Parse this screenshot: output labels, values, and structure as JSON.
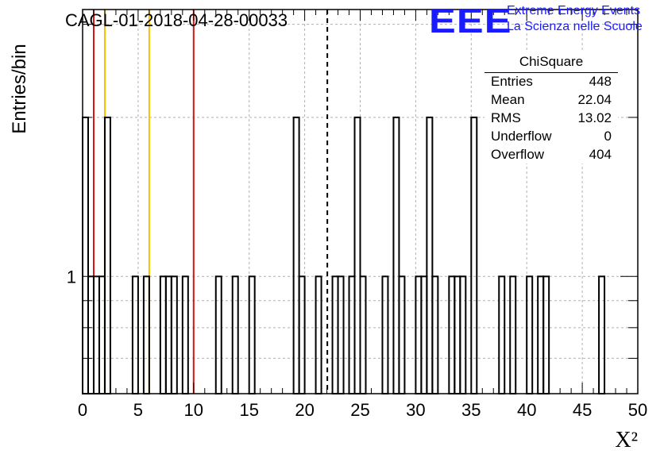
{
  "chart_data": {
    "type": "bar",
    "title": "CAGL-01-2018-04-28-00033",
    "xlabel": "X²",
    "ylabel": "Entries/bin",
    "xlim": [
      0,
      50
    ],
    "ylim_log": [
      0.6,
      3.2
    ],
    "log_y": true,
    "grid": true,
    "bin_width": 0.5,
    "x_ticks": [
      "0",
      "5",
      "10",
      "15",
      "20",
      "25",
      "30",
      "35",
      "40",
      "45",
      "50"
    ],
    "y_tick_labels": [
      {
        "value": 1,
        "label": "1"
      }
    ],
    "bins": [
      {
        "x": 0.0,
        "y": 2
      },
      {
        "x": 0.5,
        "y": 1
      },
      {
        "x": 1.0,
        "y": 1
      },
      {
        "x": 1.5,
        "y": 1
      },
      {
        "x": 2.0,
        "y": 2
      },
      {
        "x": 4.5,
        "y": 1
      },
      {
        "x": 5.5,
        "y": 1
      },
      {
        "x": 7.0,
        "y": 1
      },
      {
        "x": 7.5,
        "y": 1
      },
      {
        "x": 8.0,
        "y": 1
      },
      {
        "x": 9.0,
        "y": 1
      },
      {
        "x": 12.0,
        "y": 1
      },
      {
        "x": 13.5,
        "y": 1
      },
      {
        "x": 15.0,
        "y": 1
      },
      {
        "x": 19.0,
        "y": 2
      },
      {
        "x": 19.5,
        "y": 1
      },
      {
        "x": 21.0,
        "y": 1
      },
      {
        "x": 22.5,
        "y": 1
      },
      {
        "x": 23.0,
        "y": 1
      },
      {
        "x": 24.0,
        "y": 1
      },
      {
        "x": 24.5,
        "y": 2
      },
      {
        "x": 25.0,
        "y": 1
      },
      {
        "x": 27.0,
        "y": 1
      },
      {
        "x": 28.0,
        "y": 2
      },
      {
        "x": 28.5,
        "y": 1
      },
      {
        "x": 30.0,
        "y": 1
      },
      {
        "x": 30.5,
        "y": 1
      },
      {
        "x": 31.0,
        "y": 2
      },
      {
        "x": 31.5,
        "y": 1
      },
      {
        "x": 33.0,
        "y": 1
      },
      {
        "x": 33.5,
        "y": 1
      },
      {
        "x": 34.0,
        "y": 1
      },
      {
        "x": 35.0,
        "y": 2
      },
      {
        "x": 37.5,
        "y": 1
      },
      {
        "x": 38.5,
        "y": 1
      },
      {
        "x": 40.0,
        "y": 1
      },
      {
        "x": 41.0,
        "y": 1
      },
      {
        "x": 41.5,
        "y": 1
      },
      {
        "x": 46.5,
        "y": 1
      }
    ],
    "vertical_lines": [
      {
        "x": 1.0,
        "color": "#dd1111"
      },
      {
        "x": 2.0,
        "color": "#f2c200"
      },
      {
        "x": 6.0,
        "color": "#f2c200"
      },
      {
        "x": 10.0,
        "color": "#dd1111"
      },
      {
        "x": 22.04,
        "color": "#000000",
        "dashed": true
      }
    ],
    "stats_box": {
      "title": "ChiSquare",
      "rows": [
        {
          "label": "Entries",
          "value": "448"
        },
        {
          "label": "Mean",
          "value": "22.04"
        },
        {
          "label": "RMS",
          "value": "13.02"
        },
        {
          "label": "Underflow",
          "value": "0"
        },
        {
          "label": "Overflow",
          "value": "404"
        }
      ]
    }
  },
  "logo": {
    "mark": "EEE",
    "line1": "Extreme Energy Events",
    "line2": "La Scienza nelle Scuole",
    "color": "#1a1aff"
  }
}
